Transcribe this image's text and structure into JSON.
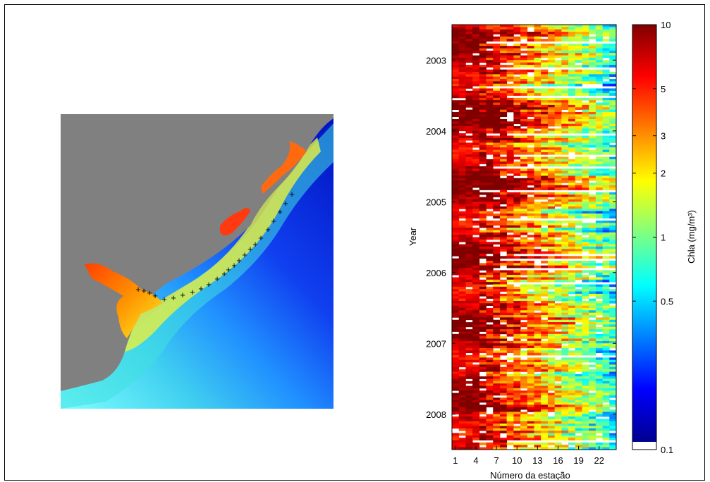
{
  "chart_data": [
    {
      "type": "map",
      "markers": "+",
      "station_count": 24,
      "colors": {
        "land": "#808080",
        "marker": "#000000"
      }
    },
    {
      "type": "heatmap",
      "xlabel": "Número da estação",
      "ylabel": "Year",
      "x_ticks": [
        "1",
        "4",
        "7",
        "10",
        "13",
        "16",
        "19",
        "22"
      ],
      "x_range": [
        1,
        24
      ],
      "y_ticks": [
        "2003",
        "2004",
        "2005",
        "2006",
        "2007",
        "2008"
      ],
      "y_range": [
        2002.5,
        2008.5
      ],
      "colorbar": {
        "label": "Chla (mg/m³)",
        "scale": "log",
        "range": [
          0.1,
          10
        ],
        "ticks": [
          "10",
          "5",
          "3",
          "2",
          "1",
          "0.5",
          "0.1"
        ],
        "missing_color": "#ffffff"
      },
      "description_levels": "high near coast (stations 1-5, ~10 mg/m3), decreasing offshore to ~0.3-1 mg/m3, with frequent missing (white) rows"
    }
  ]
}
